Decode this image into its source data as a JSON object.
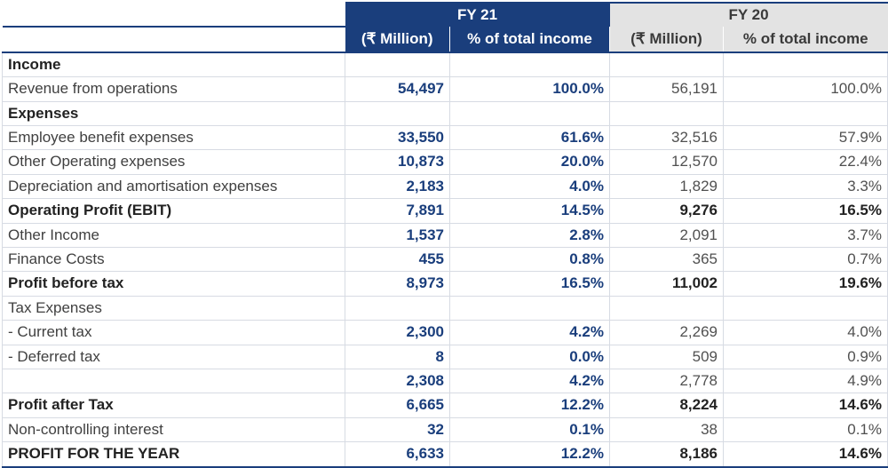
{
  "header": {
    "fy21": "FY 21",
    "fy20": "FY 20",
    "fy21_million": "(₹ Million)",
    "fy21_pct": "% of total income",
    "fy20_million": "(₹ Million)",
    "fy20_pct": "% of total income"
  },
  "rows": [
    {
      "label": "Income",
      "fy21_m": "",
      "fy21_p": "",
      "fy20_m": "",
      "fy20_p": ""
    },
    {
      "label": "Revenue from operations",
      "fy21_m": "54,497",
      "fy21_p": "100.0%",
      "fy20_m": "56,191",
      "fy20_p": "100.0%"
    },
    {
      "label": "Expenses",
      "fy21_m": "",
      "fy21_p": "",
      "fy20_m": "",
      "fy20_p": ""
    },
    {
      "label": "Employee benefit expenses",
      "fy21_m": "33,550",
      "fy21_p": "61.6%",
      "fy20_m": "32,516",
      "fy20_p": "57.9%"
    },
    {
      "label": "Other Operating expenses",
      "fy21_m": "10,873",
      "fy21_p": "20.0%",
      "fy20_m": "12,570",
      "fy20_p": "22.4%"
    },
    {
      "label": "Depreciation and amortisation expenses",
      "fy21_m": "2,183",
      "fy21_p": "4.0%",
      "fy20_m": "1,829",
      "fy20_p": "3.3%"
    },
    {
      "label": "Operating Profit (EBIT)",
      "fy21_m": "7,891",
      "fy21_p": "14.5%",
      "fy20_m": "9,276",
      "fy20_p": "16.5%"
    },
    {
      "label": "Other Income",
      "fy21_m": "1,537",
      "fy21_p": "2.8%",
      "fy20_m": "2,091",
      "fy20_p": "3.7%"
    },
    {
      "label": "Finance Costs",
      "fy21_m": "455",
      "fy21_p": "0.8%",
      "fy20_m": "365",
      "fy20_p": "0.7%"
    },
    {
      "label": "Profit before tax",
      "fy21_m": "8,973",
      "fy21_p": "16.5%",
      "fy20_m": "11,002",
      "fy20_p": "19.6%"
    },
    {
      "label": "Tax Expenses",
      "fy21_m": "",
      "fy21_p": "",
      "fy20_m": "",
      "fy20_p": ""
    },
    {
      "label": "- Current tax",
      "fy21_m": "2,300",
      "fy21_p": "4.2%",
      "fy20_m": "2,269",
      "fy20_p": "4.0%"
    },
    {
      "label": "- Deferred tax",
      "fy21_m": "8",
      "fy21_p": "0.0%",
      "fy20_m": "509",
      "fy20_p": "0.9%"
    },
    {
      "label": "",
      "fy21_m": "2,308",
      "fy21_p": "4.2%",
      "fy20_m": "2,778",
      "fy20_p": "4.9%"
    },
    {
      "label": "Profit after Tax",
      "fy21_m": "6,665",
      "fy21_p": "12.2%",
      "fy20_m": "8,224",
      "fy20_p": "14.6%"
    },
    {
      "label": "Non-controlling interest",
      "fy21_m": "32",
      "fy21_p": "0.1%",
      "fy20_m": "38",
      "fy20_p": "0.1%"
    },
    {
      "label": "PROFIT FOR THE YEAR",
      "fy21_m": "6,633",
      "fy21_p": "12.2%",
      "fy20_m": "8,186",
      "fy20_p": "14.6%"
    }
  ]
}
